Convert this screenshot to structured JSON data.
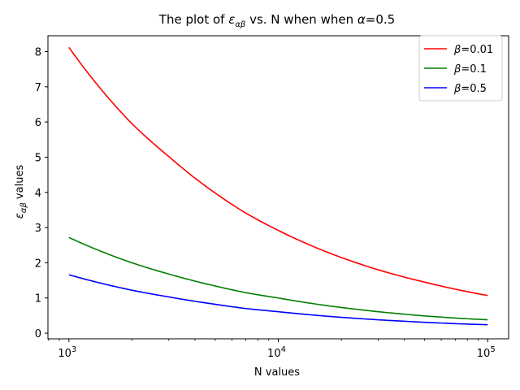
{
  "chart_data": {
    "type": "line",
    "title": "The plot of εαβ vs. N when when α=0.5",
    "title_parts": {
      "prefix": "The plot of ",
      "symbol": "ε",
      "subscript": "αβ",
      "suffix": " vs. N when when ",
      "alpha_symbol": "α",
      "alpha_value": "=0.5"
    },
    "xlabel": "N values",
    "ylabel": "εαβ values",
    "ylabel_parts": {
      "symbol": "ε",
      "subscript": "αβ",
      "suffix": " values"
    },
    "x_scale": "log",
    "xlim": [
      794,
      125893
    ],
    "ylim": [
      -0.16,
      8.45
    ],
    "x_ticks": [
      {
        "value": 1000,
        "base": "10",
        "exp": "3"
      },
      {
        "value": 10000,
        "base": "10",
        "exp": "4"
      },
      {
        "value": 100000,
        "base": "10",
        "exp": "5"
      }
    ],
    "y_ticks": [
      {
        "value": 0,
        "label": "0"
      },
      {
        "value": 1,
        "label": "1"
      },
      {
        "value": 2,
        "label": "2"
      },
      {
        "value": 3,
        "label": "3"
      },
      {
        "value": 4,
        "label": "4"
      },
      {
        "value": 5,
        "label": "5"
      },
      {
        "value": 6,
        "label": "6"
      },
      {
        "value": 7,
        "label": "7"
      },
      {
        "value": 8,
        "label": "8"
      }
    ],
    "legend_position": "top-right",
    "x": [
      1000,
      2000,
      3000,
      5000,
      7000,
      10000,
      15000,
      20000,
      30000,
      50000,
      70000,
      100000
    ],
    "series": [
      {
        "name": "β=0.01",
        "beta_symbol": "β",
        "beta_value": "=0.01",
        "color": "#ff0000",
        "values": [
          8.12,
          5.95,
          5.02,
          3.98,
          3.41,
          2.92,
          2.44,
          2.15,
          1.8,
          1.45,
          1.25,
          1.07
        ]
      },
      {
        "name": "β=0.1",
        "beta_symbol": "β",
        "beta_value": "=0.1",
        "color": "#008000",
        "values": [
          2.72,
          2.0,
          1.68,
          1.34,
          1.15,
          1.0,
          0.83,
          0.73,
          0.61,
          0.49,
          0.43,
          0.38
        ]
      },
      {
        "name": "β=0.5",
        "beta_symbol": "β",
        "beta_value": "=0.5",
        "color": "#0000ff",
        "values": [
          1.66,
          1.22,
          1.03,
          0.82,
          0.7,
          0.61,
          0.51,
          0.45,
          0.38,
          0.31,
          0.27,
          0.24
        ]
      }
    ]
  }
}
